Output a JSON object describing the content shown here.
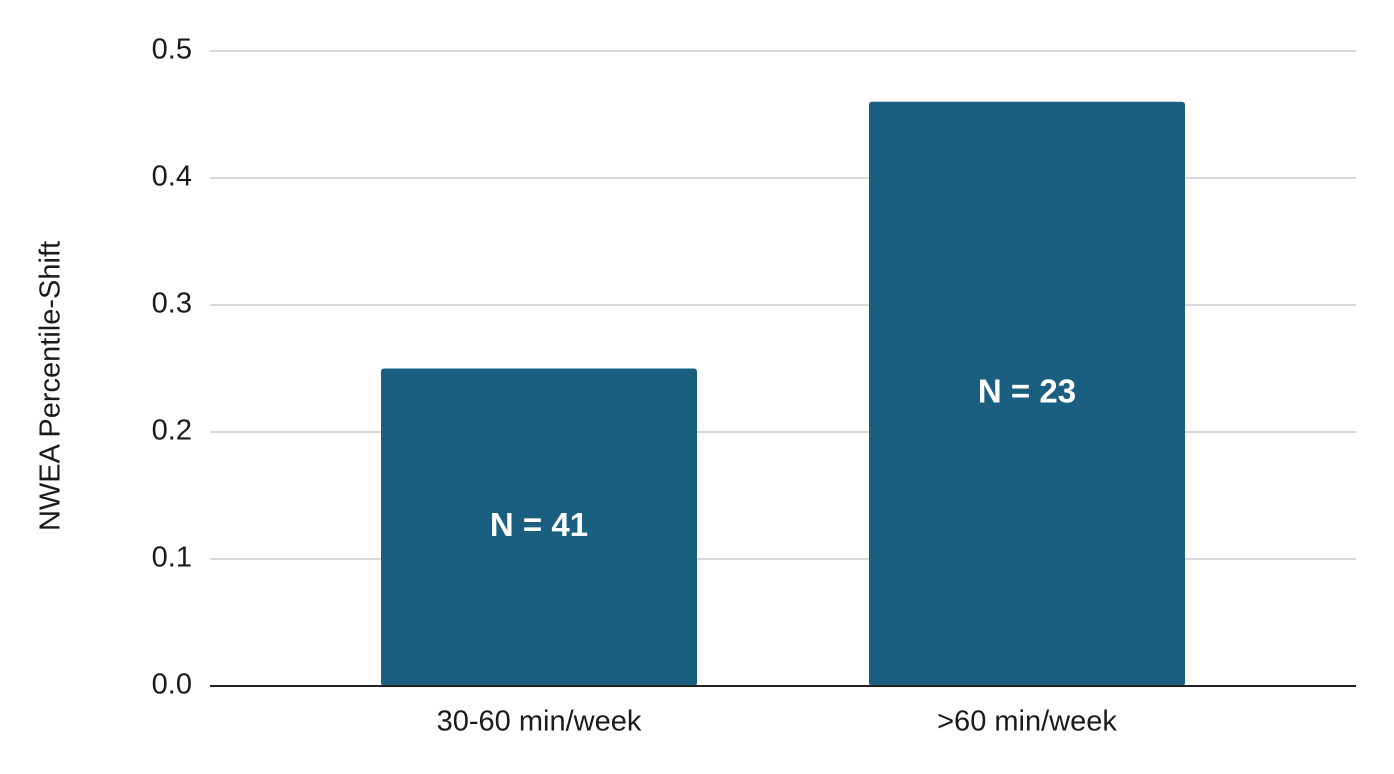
{
  "chart_data": {
    "type": "bar",
    "y_label": "NWEA Percentile-Shift",
    "categories": [
      "30-60 min/week",
      ">60 min/week"
    ],
    "values": [
      0.25,
      0.46
    ],
    "annotations": [
      "N = 41",
      "N = 23"
    ],
    "color": "#1a5f80",
    "ylim": [
      0,
      0.5
    ],
    "yticks": [
      {
        "value": 0,
        "label": "0.0"
      },
      0.1,
      0.2,
      0.3,
      0.4,
      0.5
    ],
    "grid": true
  }
}
